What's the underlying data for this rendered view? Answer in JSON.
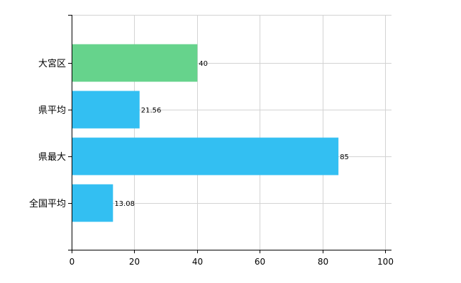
{
  "chart_data": {
    "type": "bar",
    "orientation": "horizontal",
    "categories": [
      "大宮区",
      "県平均",
      "県最大",
      "全国平均"
    ],
    "values": [
      40,
      21.56,
      85,
      13.08
    ],
    "data_labels": [
      "40",
      "21.56",
      "85",
      "13.08"
    ],
    "bar_colors": [
      "#66d38c",
      "#33bff2",
      "#33bff2",
      "#33bff2"
    ],
    "xlim": [
      0,
      100
    ],
    "x_ticks": [
      0,
      20,
      40,
      60,
      80,
      100
    ],
    "x_tick_labels": [
      "0",
      "20",
      "40",
      "60",
      "80",
      "100"
    ],
    "grid": true,
    "legend": false,
    "title": "",
    "xlabel": "",
    "ylabel": ""
  },
  "colors": {
    "axis": "#000000",
    "grid": "#d3d3d3",
    "highlight_bar": "#66d38c",
    "default_bar": "#33bff2"
  }
}
